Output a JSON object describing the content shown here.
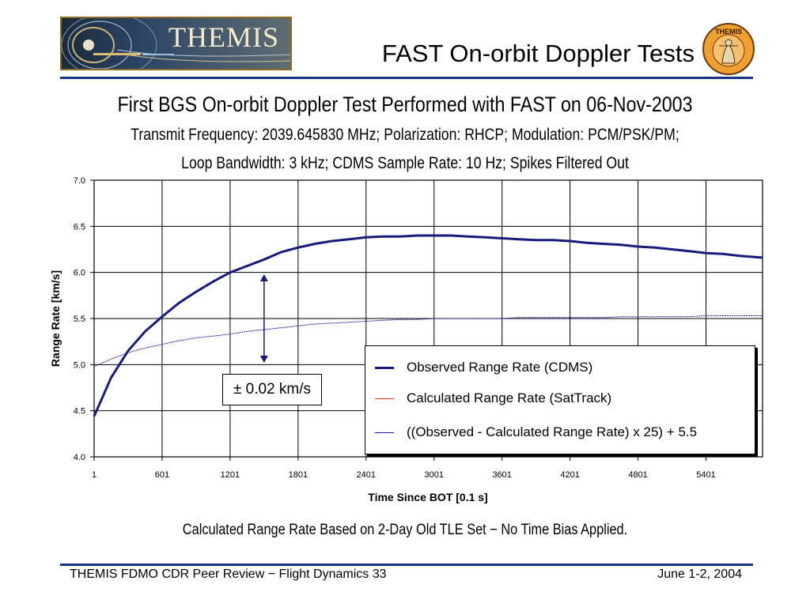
{
  "header": {
    "logo_text": "THEMIS",
    "slide_title": "FAST On-orbit Doppler Tests",
    "seal_text": "THEMIS"
  },
  "chart_headings": {
    "title": "First BGS On-orbit Doppler Test Performed with FAST on 06-Nov-2003",
    "subtitle_line1": "Transmit Frequency: 2039.645830 MHz; Polarization: RHCP; Modulation: PCM/PSK/PM;",
    "subtitle_line2": "Loop Bandwidth: 3 kHz; CDMS Sample Rate: 10 Hz; Spikes Filtered Out"
  },
  "chart_data": {
    "type": "line",
    "title": "First BGS On-orbit Doppler Test Performed with FAST on 06-Nov-2003",
    "xlabel": "Time Since BOT [0.1 s]",
    "ylabel": "Range Rate [km/s]",
    "xlim": [
      1,
      5900
    ],
    "ylim": [
      4.0,
      7.0
    ],
    "x_ticks": [
      1,
      601,
      1201,
      1801,
      2401,
      3001,
      3601,
      4201,
      4801,
      5401
    ],
    "x_tick_labels": [
      "1",
      "601",
      "1201",
      "1801",
      "2401",
      "3001",
      "3601",
      "4201",
      "4801",
      "5401"
    ],
    "y_ticks": [
      4.0,
      4.5,
      5.0,
      5.5,
      6.0,
      6.5,
      7.0
    ],
    "y_tick_labels": [
      "4.0",
      "4.5",
      "5.0",
      "5.5",
      "6.0",
      "6.5",
      "7.0"
    ],
    "grid": true,
    "legend_position": "bottom-right",
    "series": [
      {
        "name": "Observed Range Rate (CDMS)",
        "color": "#1a1a7a",
        "x": [
          1,
          151,
          301,
          451,
          601,
          751,
          901,
          1051,
          1201,
          1351,
          1501,
          1651,
          1801,
          1951,
          2101,
          2251,
          2401,
          2551,
          2701,
          2851,
          3001,
          3151,
          3301,
          3451,
          3601,
          3751,
          3901,
          4051,
          4201,
          4351,
          4501,
          4651,
          4801,
          4951,
          5101,
          5251,
          5401,
          5551,
          5701,
          5900
        ],
        "y": [
          4.44,
          4.86,
          5.15,
          5.36,
          5.52,
          5.67,
          5.79,
          5.9,
          6.0,
          6.07,
          6.14,
          6.22,
          6.27,
          6.31,
          6.34,
          6.36,
          6.38,
          6.39,
          6.39,
          6.4,
          6.4,
          6.4,
          6.39,
          6.38,
          6.37,
          6.36,
          6.35,
          6.35,
          6.34,
          6.32,
          6.31,
          6.3,
          6.28,
          6.27,
          6.25,
          6.23,
          6.21,
          6.2,
          6.18,
          6.16
        ]
      },
      {
        "name": "Calculated Range Rate (SatTrack)",
        "color": "#e03020",
        "x": [],
        "y": []
      },
      {
        "name": "((Observed - Calculated Range Rate) x 25) + 5.5",
        "color": "#1a1a9a",
        "x": [
          1,
          151,
          301,
          451,
          601,
          751,
          901,
          1051,
          1201,
          1351,
          1501,
          1651,
          1801,
          1951,
          2101,
          2251,
          2401,
          2551,
          2701,
          2851,
          3001,
          3151,
          3301,
          3451,
          3601,
          3751,
          3901,
          4051,
          4201,
          4351,
          4501,
          4651,
          4801,
          4951,
          5101,
          5251,
          5401,
          5551,
          5701,
          5900
        ],
        "y": [
          4.98,
          5.06,
          5.13,
          5.18,
          5.22,
          5.26,
          5.29,
          5.31,
          5.33,
          5.36,
          5.38,
          5.4,
          5.42,
          5.44,
          5.45,
          5.46,
          5.47,
          5.48,
          5.49,
          5.49,
          5.5,
          5.5,
          5.5,
          5.5,
          5.5,
          5.51,
          5.51,
          5.51,
          5.51,
          5.51,
          5.51,
          5.52,
          5.52,
          5.52,
          5.52,
          5.52,
          5.53,
          5.53,
          5.53,
          5.53
        ]
      }
    ],
    "annotations": [
      {
        "text": "± 0.02 km/s",
        "x": 1501,
        "y_from": 5.02,
        "y_to": 5.98
      }
    ]
  },
  "caption": "Calculated Range Rate Based on 2-Day Old TLE Set − No Time Bias Applied.",
  "footer": {
    "left": "THEMIS FDMO CDR Peer Review − Flight Dynamics 33",
    "right": "June 1-2, 2004"
  }
}
